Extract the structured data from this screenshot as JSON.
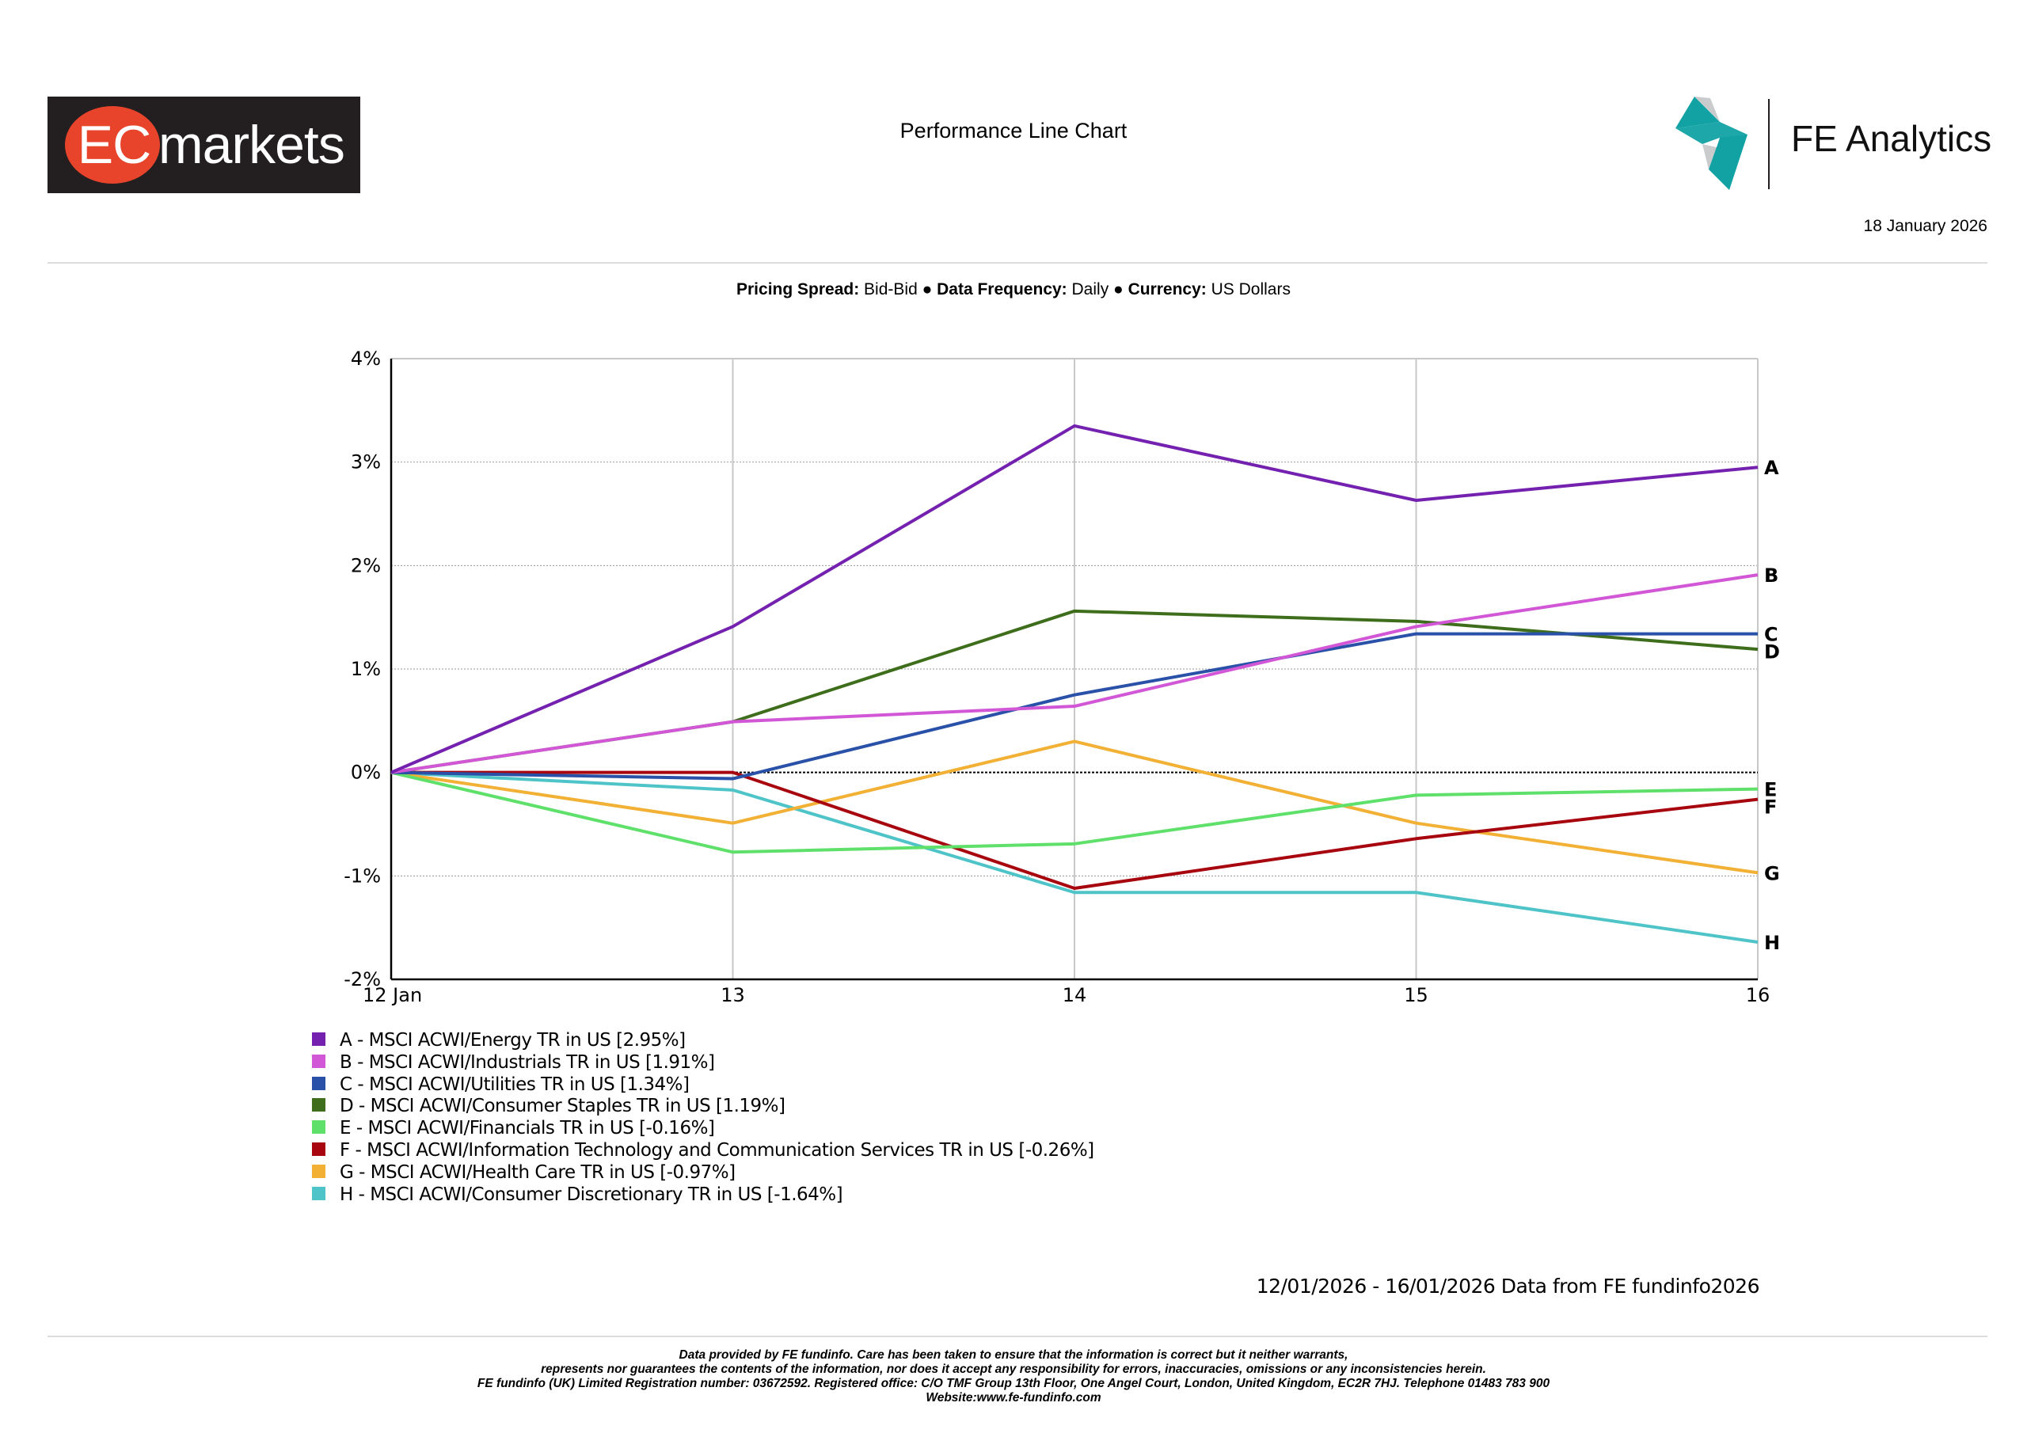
{
  "header": {
    "brand_logo": "EC markets",
    "brand_logo_parts": {
      "ec": "EC",
      "rest": "markets"
    },
    "report_title": "Performance Line Chart",
    "provider_name": "FE Analytics",
    "report_date": "18 January 2026"
  },
  "settings": {
    "pricing_label": "Pricing Spread:",
    "pricing_value": "Bid-Bid",
    "frequency_label": "Data Frequency:",
    "frequency_value": "Daily",
    "currency_label": "Currency:",
    "currency_value": "US Dollars",
    "separator": "●"
  },
  "chart_data": {
    "type": "line",
    "x": [
      "12 Jan",
      "13",
      "14",
      "15",
      "16"
    ],
    "ylim": [
      -2,
      4
    ],
    "yticks": [
      4,
      3,
      2,
      1,
      0,
      -1,
      -2
    ],
    "ytick_labels": [
      "4%",
      "3%",
      "2%",
      "1%",
      "0%",
      "-1%",
      "-2%"
    ],
    "grid": true,
    "series": [
      {
        "letter": "A",
        "name": "A - MSCI ACWI/Energy TR in US [2.95%]",
        "color": "#7421b0",
        "values": [
          0,
          1.41,
          3.35,
          2.63,
          2.95
        ]
      },
      {
        "letter": "B",
        "name": "B - MSCI ACWI/Industrials TR in US [1.91%]",
        "color": "#d257d6",
        "values": [
          0,
          0.49,
          0.64,
          1.41,
          1.91
        ]
      },
      {
        "letter": "C",
        "name": "C - MSCI ACWI/Utilities TR in US [1.34%]",
        "color": "#2a51a8",
        "values": [
          0,
          -0.06,
          0.75,
          1.34,
          1.34
        ]
      },
      {
        "letter": "D",
        "name": "D - MSCI ACWI/Consumer Staples TR in US [1.19%]",
        "color": "#3e6e1c",
        "values": [
          0,
          0.49,
          1.56,
          1.46,
          1.19
        ]
      },
      {
        "letter": "E",
        "name": "E - MSCI ACWI/Financials TR in US [-0.16%]",
        "color": "#5fe06a",
        "values": [
          0,
          -0.77,
          -0.69,
          -0.22,
          -0.16
        ]
      },
      {
        "letter": "F",
        "name": "F - MSCI ACWI/Information Technology and Communication Services TR in US [-0.26%]",
        "color": "#a8060e",
        "values": [
          0,
          0,
          -1.12,
          -0.64,
          -0.26
        ]
      },
      {
        "letter": "G",
        "name": "G - MSCI ACWI/Health Care TR in US [-0.97%]",
        "color": "#f2b035",
        "values": [
          0,
          -0.49,
          0.3,
          -0.49,
          -0.97
        ]
      },
      {
        "letter": "H",
        "name": "H - MSCI ACWI/Consumer Discretionary TR in US [-1.64%]",
        "color": "#4fc4c8",
        "values": [
          0,
          -0.17,
          -1.16,
          -1.16,
          -1.64
        ]
      }
    ]
  },
  "footer": {
    "data_source": "12/01/2026 - 16/01/2026 Data from FE fundinfo2026",
    "disclaimer_lines": [
      "Data provided by FE fundinfo. Care has been taken to ensure that the information is correct but it neither warrants,",
      "represents nor guarantees the contents of the information, nor does it accept any responsibility for errors, inaccuracies, omissions or any inconsistencies herein.",
      "FE fundinfo (UK) Limited Registration number: 03672592. Registered office: C/O TMF Group 13th Floor, One Angel Court, London, United Kingdom, EC2R 7HJ. Telephone 01483 783 900",
      "Website:www.fe-fundinfo.com"
    ]
  }
}
